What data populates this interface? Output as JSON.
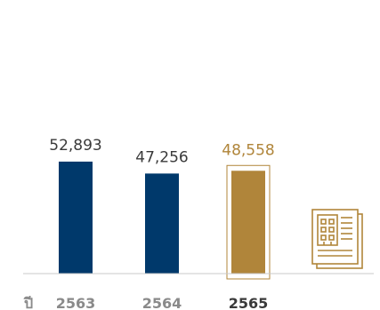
{
  "chart_data": {
    "type": "bar",
    "categories": [
      "2563",
      "2564",
      "2565"
    ],
    "values": [
      52893,
      47256,
      48558
    ],
    "value_labels": [
      "52,893",
      "47,256",
      "48,558"
    ],
    "highlight_category": "2565",
    "x_axis_prefix": "ปี",
    "ylim": [
      0,
      60000
    ],
    "grid": false,
    "legend": "none"
  },
  "colors": {
    "bar": "#00396b",
    "highlight": "#b0853a",
    "axis": "#c8c8c8",
    "text": "#3a3a3a",
    "muted": "#8a8a8a"
  },
  "icons": {
    "report": "document-building-icon"
  }
}
